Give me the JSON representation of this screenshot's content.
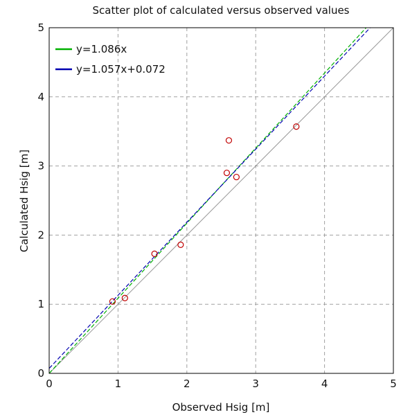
{
  "chart_data": {
    "type": "scatter",
    "title": "Scatter plot of calculated versus observed values",
    "xlabel": "Observed Hsig [m]",
    "ylabel": "Calculated Hsig [m]",
    "xlim": [
      0,
      5
    ],
    "ylim": [
      0,
      5
    ],
    "xticks": [
      0,
      1,
      2,
      3,
      4,
      5
    ],
    "yticks": [
      0,
      1,
      2,
      3,
      4,
      5
    ],
    "grid": true,
    "legend_position": "top-left",
    "points": [
      {
        "x": 0.92,
        "y": 1.04
      },
      {
        "x": 1.1,
        "y": 1.09
      },
      {
        "x": 1.53,
        "y": 1.73
      },
      {
        "x": 1.91,
        "y": 1.86
      },
      {
        "x": 2.58,
        "y": 2.9
      },
      {
        "x": 2.61,
        "y": 3.37
      },
      {
        "x": 2.72,
        "y": 2.84
      },
      {
        "x": 3.59,
        "y": 3.57
      }
    ],
    "marker_color": "#c00000",
    "reference_line": {
      "slope": 1,
      "intercept": 0,
      "color": "#999999"
    },
    "fit_lines": [
      {
        "name": "y=1.086x",
        "slope": 1.086,
        "intercept": 0,
        "color": "#00b000",
        "dashed": true
      },
      {
        "name": "y=1.057x+0.072",
        "slope": 1.057,
        "intercept": 0.072,
        "color": "#0000b0",
        "dashed": true
      }
    ]
  }
}
